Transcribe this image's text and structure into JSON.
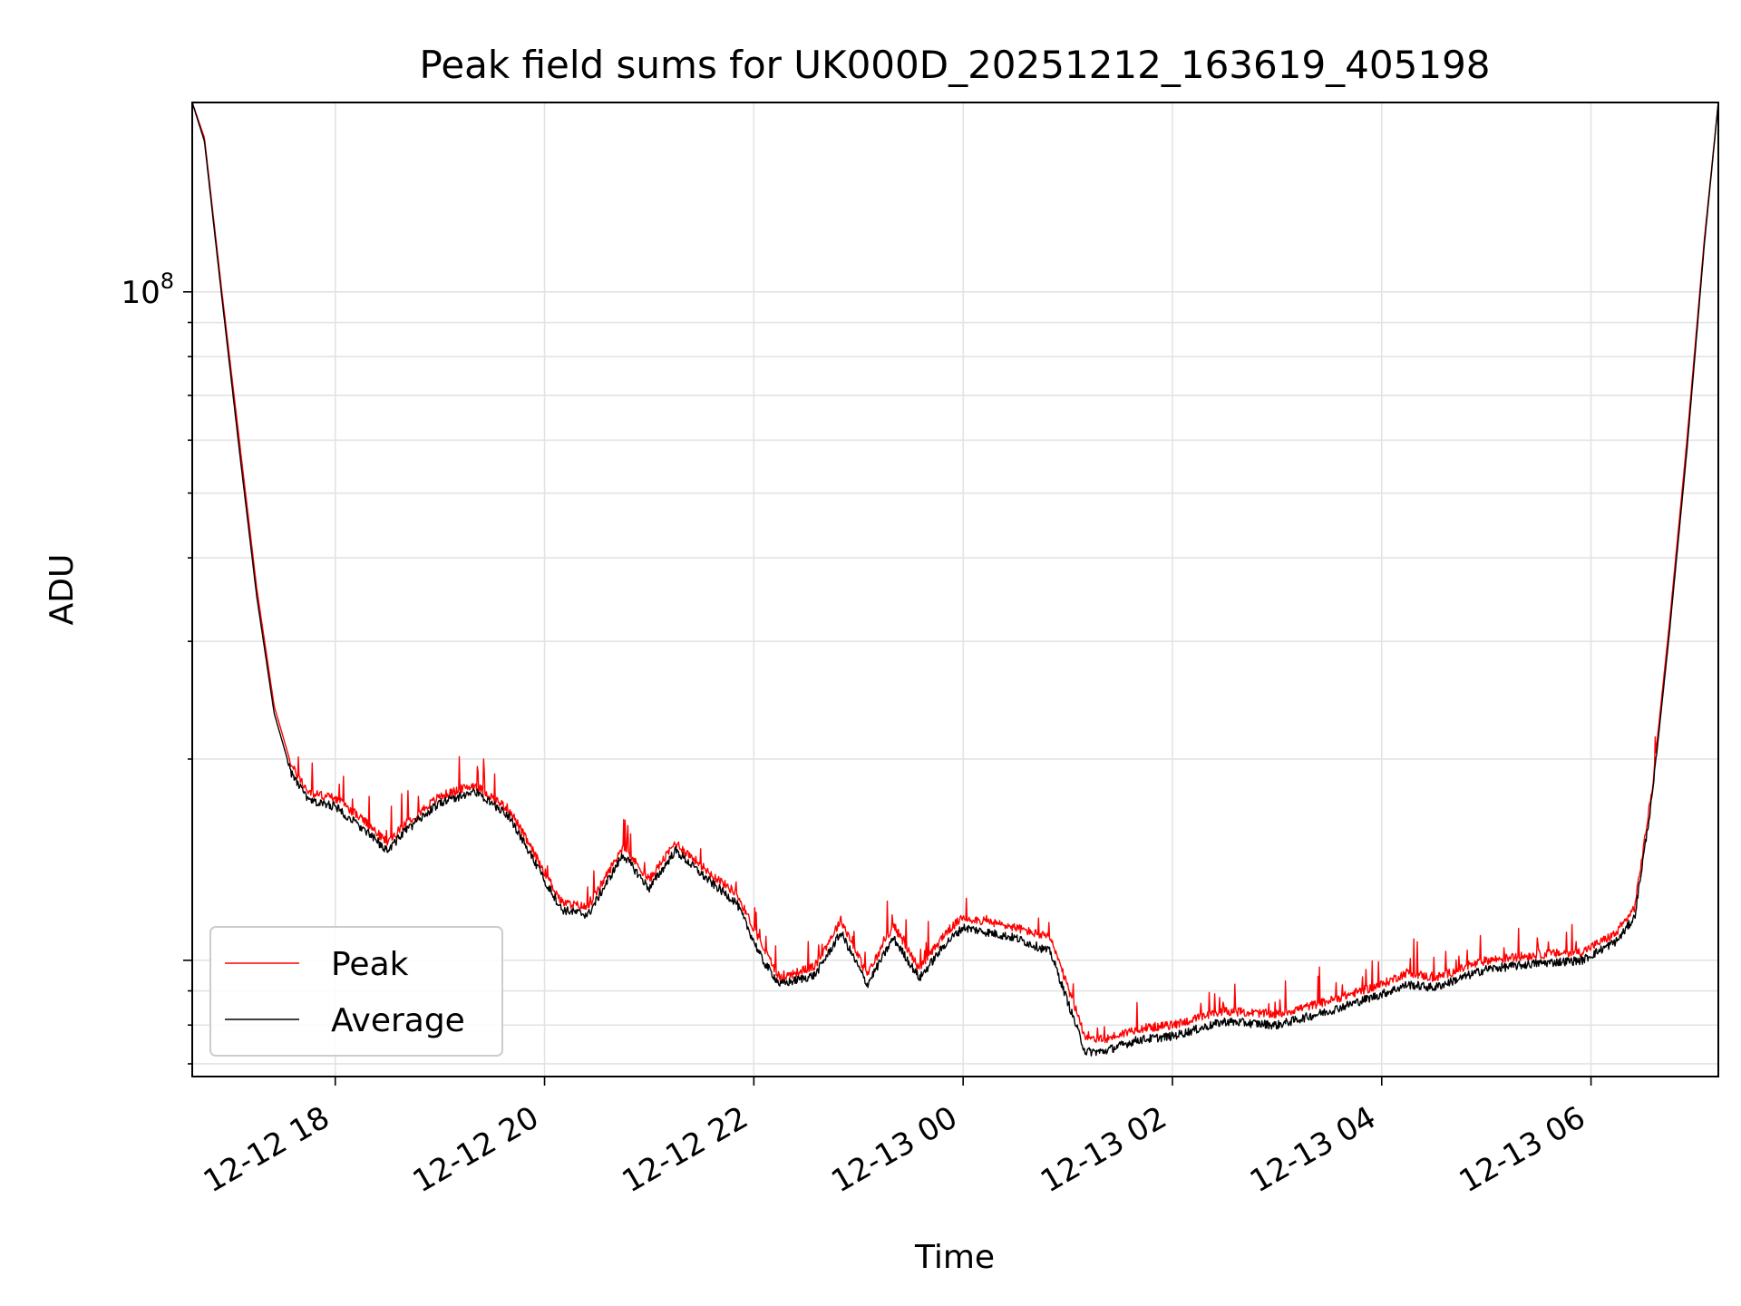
{
  "chart_data": {
    "type": "line",
    "title": "Peak field sums for UK000D_20251212_163619_405198",
    "xlabel": "Time",
    "ylabel": "ADU",
    "y_scale": "log",
    "ylim": [
      6700000,
      192000000
    ],
    "xlim": [
      "2025-12-12 16:38",
      "2025-12-13 07:13"
    ],
    "grid": true,
    "legend_placement": "lower-left",
    "x_ticks": [
      "2025-12-12 18:00",
      "2025-12-12 20:00",
      "2025-12-12 22:00",
      "2025-12-13 00:00",
      "2025-12-13 02:00",
      "2025-12-13 04:00",
      "2025-12-13 06:00"
    ],
    "x_tick_labels": [
      "12-12 18",
      "12-12 20",
      "12-12 22",
      "12-13 00",
      "12-13 02",
      "12-13 04",
      "12-13 06"
    ],
    "y_ticks": [
      100000000
    ],
    "y_tick_labels": [
      "10^8"
    ],
    "y_major_tick_label": {
      "base": "10",
      "exp": "8"
    },
    "x": [
      "2025-12-12 16:38",
      "2025-12-12 16:45",
      "2025-12-12 16:55",
      "2025-12-12 17:05",
      "2025-12-12 17:15",
      "2025-12-12 17:25",
      "2025-12-12 17:35",
      "2025-12-12 17:45",
      "2025-12-12 18:00",
      "2025-12-12 18:15",
      "2025-12-12 18:30",
      "2025-12-12 18:40",
      "2025-12-12 18:50",
      "2025-12-12 19:00",
      "2025-12-12 19:20",
      "2025-12-12 19:40",
      "2025-12-12 19:55",
      "2025-12-12 20:10",
      "2025-12-12 20:25",
      "2025-12-12 20:45",
      "2025-12-12 21:00",
      "2025-12-12 21:15",
      "2025-12-12 21:35",
      "2025-12-12 21:50",
      "2025-12-12 22:05",
      "2025-12-12 22:15",
      "2025-12-12 22:35",
      "2025-12-12 22:50",
      "2025-12-12 23:05",
      "2025-12-12 23:20",
      "2025-12-12 23:35",
      "2025-12-12 23:50",
      "2025-12-13 00:00",
      "2025-12-13 00:15",
      "2025-12-13 00:30",
      "2025-12-13 00:50",
      "2025-12-13 01:10",
      "2025-12-13 01:20",
      "2025-12-13 01:40",
      "2025-12-13 02:00",
      "2025-12-13 02:30",
      "2025-12-13 03:00",
      "2025-12-13 03:30",
      "2025-12-13 04:00",
      "2025-12-13 04:15",
      "2025-12-13 04:30",
      "2025-12-13 05:00",
      "2025-12-13 05:30",
      "2025-12-13 05:55",
      "2025-12-13 06:15",
      "2025-12-13 06:25",
      "2025-12-13 06:35",
      "2025-12-13 06:45",
      "2025-12-13 06:55",
      "2025-12-13 07:05",
      "2025-12-13 07:13"
    ],
    "series": [
      {
        "name": "Peak",
        "color": "#ff0000",
        "values": [
          192000000,
          170000000,
          100000000,
          60000000,
          36000000,
          24000000,
          19500000,
          17800000,
          17500000,
          16300000,
          15000000,
          16000000,
          16800000,
          17600000,
          18300000,
          16800000,
          14300000,
          12200000,
          12000000,
          14800000,
          13200000,
          15000000,
          13500000,
          12600000,
          10500000,
          9400000,
          9800000,
          11500000,
          9500000,
          11300000,
          9700000,
          11000000,
          11600000,
          11400000,
          11200000,
          10800000,
          7700000,
          7600000,
          7900000,
          8000000,
          8400000,
          8300000,
          8700000,
          9200000,
          9600000,
          9400000,
          10000000,
          10200000,
          10300000,
          11000000,
          12000000,
          18000000,
          32000000,
          60000000,
          120000000,
          192000000
        ]
      },
      {
        "name": "Average",
        "color": "#000000",
        "values": [
          192000000,
          168000000,
          98000000,
          58000000,
          35000000,
          23400000,
          19000000,
          17300000,
          17000000,
          15800000,
          14600000,
          15600000,
          16400000,
          17200000,
          17900000,
          16400000,
          13900000,
          11900000,
          11700000,
          14400000,
          12800000,
          14600000,
          13100000,
          12200000,
          10000000,
          9200000,
          9500000,
          11000000,
          9200000,
          10800000,
          9400000,
          10600000,
          11200000,
          11000000,
          10800000,
          10300000,
          7300000,
          7300000,
          7600000,
          7700000,
          8100000,
          8000000,
          8400000,
          8900000,
          9200000,
          9100000,
          9700000,
          9900000,
          10000000,
          10700000,
          11600000,
          17500000,
          31000000,
          58000000,
          118000000,
          192000000
        ]
      }
    ]
  }
}
